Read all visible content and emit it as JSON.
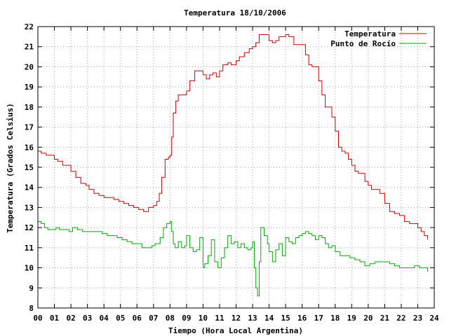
{
  "chart_data": {
    "type": "line",
    "title": "Temperatura 18/10/2006",
    "xlabel": "Tiempo (Hora Local Argentina)",
    "ylabel": "Temperatura (Grados Celsius)",
    "xlim": [
      0,
      24
    ],
    "ylim": [
      8,
      22
    ],
    "grid": true,
    "legend_position": "top-right",
    "x_tick_labels": [
      "00",
      "01",
      "02",
      "03",
      "04",
      "05",
      "06",
      "07",
      "08",
      "09",
      "10",
      "11",
      "12",
      "13",
      "14",
      "15",
      "16",
      "17",
      "18",
      "19",
      "20",
      "21",
      "22",
      "23",
      "24"
    ],
    "y_tick_labels": [
      "8",
      "9",
      "10",
      "11",
      "12",
      "13",
      "14",
      "15",
      "16",
      "17",
      "18",
      "19",
      "20",
      "21",
      "22"
    ],
    "series": [
      {
        "name": "Temperatura",
        "color": "#cc0000",
        "x": [
          0,
          0.2,
          0.5,
          0.8,
          1.0,
          1.2,
          1.5,
          1.8,
          2.0,
          2.3,
          2.6,
          2.9,
          3.1,
          3.4,
          3.7,
          4.0,
          4.3,
          4.6,
          4.9,
          5.2,
          5.5,
          5.8,
          6.1,
          6.4,
          6.7,
          7.0,
          7.2,
          7.35,
          7.5,
          7.7,
          7.9,
          8.0,
          8.1,
          8.2,
          8.35,
          8.5,
          8.8,
          9.0,
          9.2,
          9.5,
          9.7,
          10.0,
          10.2,
          10.4,
          10.6,
          10.8,
          11.0,
          11.2,
          11.5,
          11.7,
          12.0,
          12.2,
          12.5,
          12.8,
          13.0,
          13.2,
          13.4,
          13.6,
          13.8,
          14.0,
          14.2,
          14.4,
          14.6,
          14.8,
          15.0,
          15.2,
          15.5,
          15.8,
          16.0,
          16.2,
          16.4,
          16.6,
          16.8,
          17.0,
          17.2,
          17.4,
          17.6,
          17.8,
          18.0,
          18.2,
          18.4,
          18.6,
          18.8,
          19.0,
          19.2,
          19.4,
          19.6,
          19.8,
          20.0,
          20.2,
          20.4,
          20.7,
          21.0,
          21.3,
          21.6,
          21.9,
          22.2,
          22.5,
          22.8,
          23.0,
          23.2,
          23.4,
          23.6
        ],
        "y": [
          15.8,
          15.7,
          15.6,
          15.6,
          15.4,
          15.3,
          15.1,
          15.1,
          14.8,
          14.5,
          14.2,
          14.1,
          13.9,
          13.7,
          13.6,
          13.5,
          13.5,
          13.4,
          13.3,
          13.2,
          13.1,
          13.0,
          12.9,
          12.8,
          13.0,
          13.1,
          13.3,
          13.7,
          14.5,
          15.4,
          15.5,
          15.6,
          16.5,
          17.7,
          18.3,
          18.6,
          18.6,
          18.8,
          19.3,
          19.8,
          19.8,
          19.6,
          19.4,
          19.6,
          19.7,
          19.5,
          19.8,
          20.1,
          20.2,
          20.1,
          20.3,
          20.5,
          20.7,
          20.9,
          21.0,
          21.2,
          21.6,
          21.6,
          21.6,
          21.3,
          21.2,
          21.3,
          21.5,
          21.5,
          21.6,
          21.5,
          21.1,
          21.1,
          21.1,
          20.6,
          20.1,
          20.0,
          20.0,
          19.3,
          18.6,
          18.0,
          18.0,
          17.5,
          16.8,
          16.0,
          15.8,
          15.7,
          15.4,
          15.1,
          14.8,
          14.7,
          14.7,
          14.3,
          14.1,
          13.9,
          13.9,
          13.7,
          13.2,
          12.8,
          12.7,
          12.6,
          12.3,
          12.2,
          12.2,
          12.0,
          11.8,
          11.6,
          11.4
        ]
      },
      {
        "name": "Punto de Rocío",
        "color": "#00aa00",
        "x": [
          0,
          0.2,
          0.4,
          0.6,
          0.9,
          1.1,
          1.3,
          1.6,
          1.9,
          2.1,
          2.4,
          2.7,
          3.0,
          3.3,
          3.6,
          3.9,
          4.2,
          4.5,
          4.8,
          5.1,
          5.4,
          5.7,
          6.0,
          6.3,
          6.6,
          6.9,
          7.1,
          7.4,
          7.6,
          7.8,
          8.0,
          8.1,
          8.2,
          8.3,
          8.5,
          8.7,
          8.9,
          9.0,
          9.2,
          9.4,
          9.6,
          9.8,
          10.0,
          10.1,
          10.3,
          10.5,
          10.7,
          10.9,
          11.1,
          11.3,
          11.5,
          11.7,
          11.9,
          12.1,
          12.3,
          12.5,
          12.7,
          12.9,
          13.0,
          13.1,
          13.2,
          13.3,
          13.4,
          13.5,
          13.7,
          13.9,
          14.0,
          14.2,
          14.4,
          14.6,
          14.8,
          15.0,
          15.2,
          15.4,
          15.6,
          15.8,
          16.0,
          16.2,
          16.4,
          16.6,
          16.8,
          17.0,
          17.2,
          17.4,
          17.6,
          17.8,
          18.0,
          18.3,
          18.6,
          18.9,
          19.2,
          19.5,
          19.8,
          20.1,
          20.4,
          20.7,
          21.0,
          21.3,
          21.6,
          21.9,
          22.2,
          22.5,
          22.8,
          23.1,
          23.4,
          23.6
        ],
        "y": [
          12.3,
          12.2,
          12.0,
          11.9,
          11.9,
          12.0,
          11.9,
          11.9,
          11.8,
          12.0,
          11.9,
          11.8,
          11.8,
          11.8,
          11.8,
          11.7,
          11.6,
          11.6,
          11.5,
          11.4,
          11.3,
          11.2,
          11.2,
          11.0,
          11.0,
          11.1,
          11.2,
          11.5,
          12.0,
          12.2,
          12.3,
          11.8,
          11.2,
          11.0,
          11.3,
          11.0,
          11.1,
          11.6,
          11.0,
          10.8,
          10.9,
          11.5,
          10.0,
          10.2,
          10.6,
          11.4,
          10.3,
          10.0,
          10.5,
          11.0,
          11.6,
          11.2,
          11.3,
          11.0,
          11.2,
          11.0,
          10.9,
          11.0,
          11.3,
          10.0,
          9.0,
          8.6,
          10.3,
          12.0,
          11.6,
          11.2,
          10.8,
          10.3,
          10.9,
          11.2,
          10.6,
          11.5,
          11.3,
          11.2,
          11.5,
          11.6,
          11.7,
          11.8,
          11.7,
          11.6,
          11.4,
          11.6,
          11.5,
          11.2,
          11.0,
          11.1,
          10.8,
          10.6,
          10.6,
          10.5,
          10.4,
          10.3,
          10.1,
          10.2,
          10.3,
          10.3,
          10.3,
          10.2,
          10.1,
          10.0,
          10.0,
          10.0,
          10.1,
          10.0,
          10.0,
          9.8
        ]
      }
    ]
  }
}
